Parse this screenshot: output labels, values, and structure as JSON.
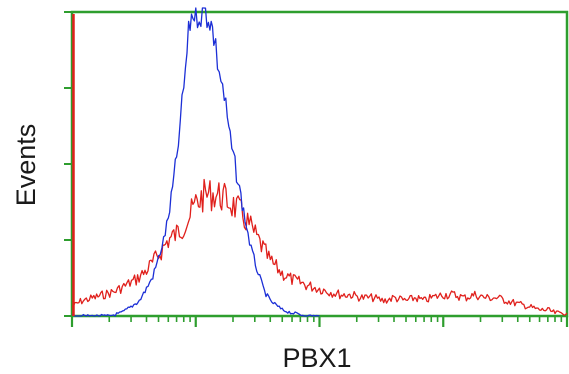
{
  "chart_data": {
    "type": "line",
    "title": "",
    "xlabel": "PBX1",
    "ylabel": "Events",
    "x_scale": "log",
    "xlim": [
      1,
      10000
    ],
    "ylim": [
      0,
      100
    ],
    "grid": false,
    "legend": "none",
    "frame_color": "#2e9e2e",
    "series": [
      {
        "color": "#e0201c",
        "x": [
          1,
          1.2,
          1.5,
          1.8,
          2.2,
          2.7,
          3.3,
          4,
          5,
          6,
          7,
          8,
          9,
          10,
          12,
          15,
          18,
          22,
          27,
          33,
          40,
          50,
          60,
          70,
          80,
          100,
          120,
          150,
          180,
          220,
          270,
          330,
          400,
          500,
          600,
          700,
          800,
          1000,
          1200,
          1500,
          1800,
          2200,
          2700,
          3300,
          4000,
          5000,
          6000,
          7000,
          8000,
          10000
        ],
        "y": [
          3,
          5,
          6,
          7,
          8,
          10,
          12,
          15,
          20,
          25,
          27,
          30,
          33,
          37,
          40,
          40,
          38,
          35,
          30,
          24,
          18,
          14,
          12,
          11,
          10,
          9,
          8,
          7,
          7,
          6,
          6,
          5,
          6,
          5,
          6,
          5,
          6,
          7,
          7,
          6,
          7,
          6,
          6,
          5,
          4,
          3,
          2,
          2,
          1,
          1
        ]
      },
      {
        "color": "#1c2fd6",
        "x": [
          1,
          1.2,
          1.5,
          2,
          2.5,
          3,
          3.5,
          4,
          4.5,
          5,
          5.5,
          6,
          6.5,
          7,
          7.5,
          8,
          8.5,
          9,
          9.5,
          10,
          11,
          12,
          13,
          14,
          15,
          17,
          19,
          22,
          25,
          28,
          32,
          36,
          40,
          50,
          60,
          80,
          100
        ],
        "y": [
          0,
          0,
          0,
          0,
          1,
          3,
          5,
          9,
          13,
          19,
          25,
          32,
          42,
          52,
          63,
          75,
          87,
          97,
          100,
          100,
          100,
          100,
          98,
          92,
          84,
          72,
          58,
          44,
          32,
          22,
          14,
          8,
          5,
          2,
          1,
          0,
          0
        ]
      }
    ]
  }
}
